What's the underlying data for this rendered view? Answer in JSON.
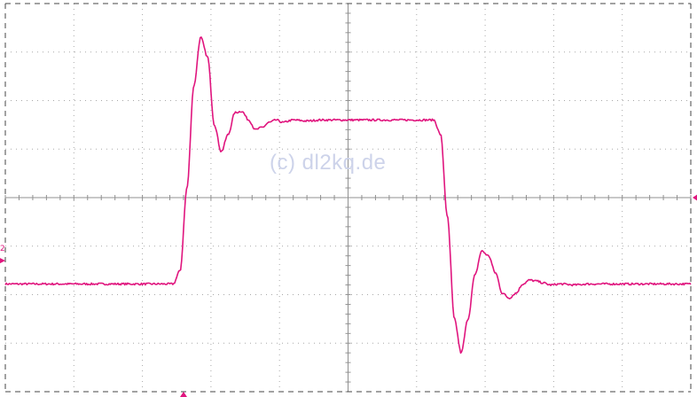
{
  "watermark": "(c) dl2kq.de",
  "channel_marker_label": "2",
  "colors": {
    "trace": "#e0157e",
    "grid": "#a8a8a8",
    "axis": "#909090",
    "frame": "#444444",
    "watermark": "#cdd3ea",
    "background": "#ffffff"
  },
  "chart_data": {
    "type": "line",
    "title": "",
    "xlabel": "",
    "ylabel": "",
    "xlim": [
      0,
      10
    ],
    "ylim": [
      -4,
      4
    ],
    "grid": true,
    "divisions": {
      "x": 10,
      "y": 8
    },
    "series": [
      {
        "name": "",
        "x": [
          0.0,
          2.45,
          2.55,
          2.65,
          2.75,
          2.85,
          2.95,
          3.05,
          3.15,
          3.25,
          3.35,
          3.45,
          3.55,
          3.65,
          3.75,
          3.85,
          3.95,
          4.05,
          4.2,
          4.4,
          4.6,
          4.8,
          5.0,
          5.5,
          6.0,
          6.25,
          6.35,
          6.45,
          6.55,
          6.65,
          6.75,
          6.85,
          6.95,
          7.05,
          7.15,
          7.25,
          7.35,
          7.45,
          7.55,
          7.65,
          7.75,
          7.85,
          7.95,
          8.1,
          8.3,
          8.5,
          8.7,
          9.0,
          9.5,
          10.0
        ],
        "y": [
          -1.78,
          -1.78,
          -1.5,
          0.2,
          2.3,
          3.3,
          2.9,
          1.5,
          0.95,
          1.3,
          1.75,
          1.78,
          1.6,
          1.4,
          1.45,
          1.55,
          1.6,
          1.55,
          1.6,
          1.58,
          1.6,
          1.6,
          1.6,
          1.6,
          1.6,
          1.6,
          1.3,
          -0.4,
          -2.5,
          -3.2,
          -2.5,
          -1.6,
          -1.1,
          -1.2,
          -1.55,
          -1.97,
          -2.07,
          -1.97,
          -1.78,
          -1.7,
          -1.72,
          -1.76,
          -1.8,
          -1.78,
          -1.8,
          -1.78,
          -1.78,
          -1.78,
          -1.78,
          -1.78
        ]
      }
    ],
    "markers": {
      "trigger_level_y": 0.0,
      "channel_reference_y": -1.3,
      "trigger_position_x": 2.6
    }
  }
}
